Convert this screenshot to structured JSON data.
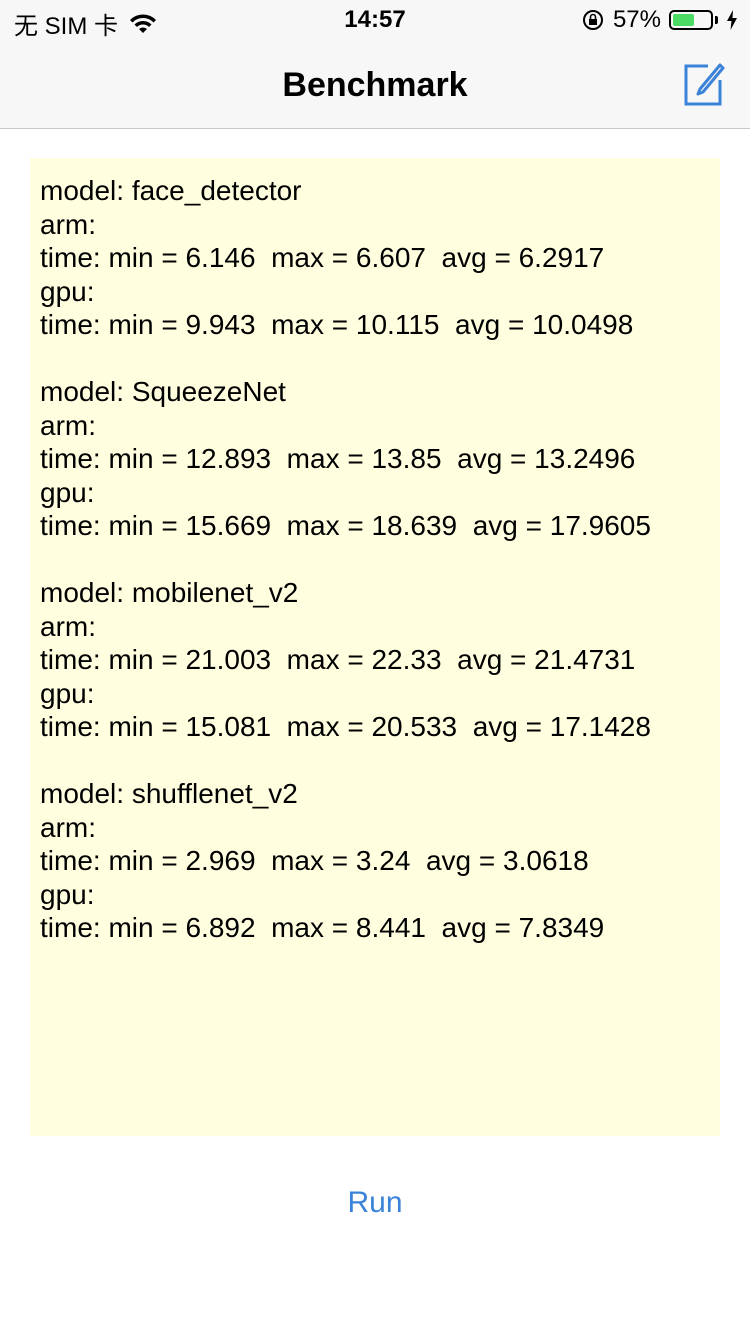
{
  "status_bar": {
    "carrier": "无 SIM 卡",
    "time": "14:57",
    "battery_percent": "57%",
    "battery_level": 0.57,
    "icons": [
      "wifi-icon",
      "rotation-lock-icon",
      "battery-icon",
      "charging-bolt-icon"
    ]
  },
  "nav": {
    "title": "Benchmark",
    "right_icon": "compose-icon",
    "accent_color": "#3a83d8"
  },
  "output": {
    "background_color": "#ffffe0",
    "blocks": [
      {
        "model": "model: face_detector",
        "arm_label": "arm:",
        "arm_time": "time: min = 6.146  max = 6.607  avg = 6.2917",
        "gpu_label": "gpu:",
        "gpu_time": "time: min = 9.943  max = 10.115  avg = 10.0498"
      },
      {
        "model": "model: SqueezeNet",
        "arm_label": "arm:",
        "arm_time": "time: min = 12.893  max = 13.85  avg = 13.2496",
        "gpu_label": "gpu:",
        "gpu_time": "time: min = 15.669  max = 18.639  avg = 17.9605"
      },
      {
        "model": "model: mobilenet_v2",
        "arm_label": "arm:",
        "arm_time": "time: min = 21.003  max = 22.33  avg = 21.4731",
        "gpu_label": "gpu:",
        "gpu_time": "time: min = 15.081  max = 20.533  avg = 17.1428"
      },
      {
        "model": "model: shufflenet_v2",
        "arm_label": "arm:",
        "arm_time": "time: min = 2.969  max = 3.24  avg = 3.0618",
        "gpu_label": "gpu:",
        "gpu_time": "time: min = 6.892  max = 8.441  avg = 7.8349"
      }
    ]
  },
  "run_button": {
    "label": "Run"
  }
}
